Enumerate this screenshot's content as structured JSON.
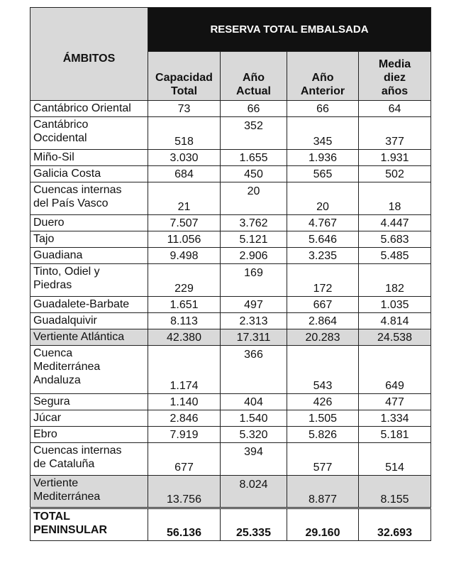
{
  "header": {
    "ambitos": "ÁMBITOS",
    "group": "RESERVA TOTAL EMBALSADA",
    "columns": [
      [
        "Capacidad",
        "Total"
      ],
      [
        "Año",
        "Actual"
      ],
      [
        "Año",
        "Anterior"
      ],
      [
        "Media",
        "diez",
        "años"
      ]
    ]
  },
  "rows": [
    {
      "name": [
        "Cantábrico Oriental"
      ],
      "values": [
        "73",
        "66",
        "66",
        "64"
      ],
      "h": "s"
    },
    {
      "name": [
        "Cantábrico",
        "Occidental"
      ],
      "values": [
        "518",
        "352",
        "345",
        "377"
      ],
      "h": "d"
    },
    {
      "name": [
        "Miño-Sil"
      ],
      "values": [
        "3.030",
        "1.655",
        "1.936",
        "1.931"
      ],
      "h": "s"
    },
    {
      "name": [
        "Galicia Costa"
      ],
      "values": [
        "684",
        "450",
        "565",
        "502"
      ],
      "h": "s"
    },
    {
      "name": [
        "Cuencas internas",
        "del País Vasco"
      ],
      "values": [
        "21",
        "20",
        "20",
        "18"
      ],
      "h": "d"
    },
    {
      "name": [
        "Duero"
      ],
      "values": [
        "7.507",
        "3.762",
        "4.767",
        "4.447"
      ],
      "h": "s"
    },
    {
      "name": [
        "Tajo"
      ],
      "values": [
        "11.056",
        "5.121",
        "5.646",
        "5.683"
      ],
      "h": "s"
    },
    {
      "name": [
        "Guadiana"
      ],
      "values": [
        "9.498",
        "2.906",
        "3.235",
        "5.485"
      ],
      "h": "s"
    },
    {
      "name": [
        "Tinto, Odiel y",
        "Piedras"
      ],
      "values": [
        "229",
        "169",
        "172",
        "182"
      ],
      "h": "d"
    },
    {
      "name": [
        "Guadalete-Barbate"
      ],
      "values": [
        "1.651",
        "497",
        "667",
        "1.035"
      ],
      "h": "s"
    },
    {
      "name": [
        "Guadalquivir"
      ],
      "values": [
        "8.113",
        "2.313",
        "2.864",
        "4.814"
      ],
      "h": "s"
    },
    {
      "name": [
        "Vertiente Atlántica"
      ],
      "values": [
        "42.380",
        "17.311",
        "20.283",
        "24.538"
      ],
      "h": "s",
      "sub": true
    },
    {
      "name": [
        "Cuenca",
        "Mediterránea",
        "Andaluza"
      ],
      "values": [
        "1.174",
        "366",
        "543",
        "649"
      ],
      "h": "t"
    },
    {
      "name": [
        "Segura"
      ],
      "values": [
        "1.140",
        "404",
        "426",
        "477"
      ],
      "h": "s"
    },
    {
      "name": [
        "Júcar"
      ],
      "values": [
        "2.846",
        "1.540",
        "1.505",
        "1.334"
      ],
      "h": "s"
    },
    {
      "name": [
        "Ebro"
      ],
      "values": [
        "7.919",
        "5.320",
        "5.826",
        "5.181"
      ],
      "h": "s"
    },
    {
      "name": [
        "Cuencas internas",
        "de Cataluña"
      ],
      "values": [
        "677",
        "394",
        "577",
        "514"
      ],
      "h": "d"
    },
    {
      "name": [
        "Vertiente",
        "Mediterránea"
      ],
      "values": [
        "13.756",
        "8.024",
        "8.877",
        "8.155"
      ],
      "h": "d",
      "sub": true
    },
    {
      "name": [
        "TOTAL",
        "PENINSULAR"
      ],
      "values": [
        "56.136",
        "25.335",
        "29.160",
        "32.693"
      ],
      "h": "d",
      "total": true
    }
  ]
}
